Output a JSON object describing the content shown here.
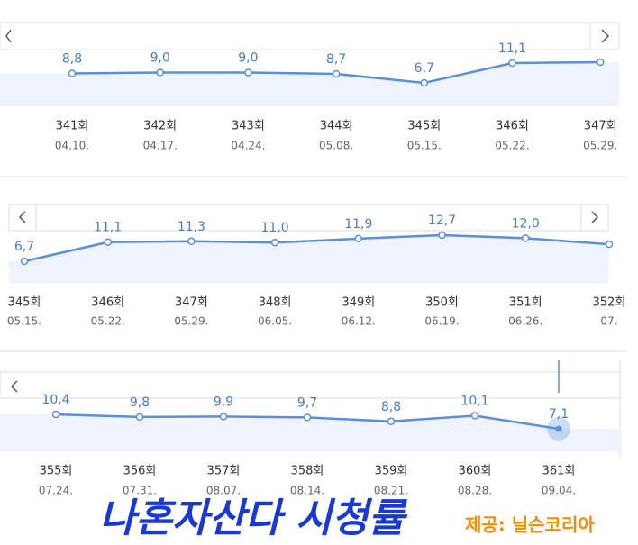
{
  "chart_data": [
    {
      "type": "line",
      "categories": [
        "341회",
        "342회",
        "343회",
        "344회",
        "345회",
        "346회",
        "347회"
      ],
      "dates": [
        "04.10.",
        "04.17.",
        "04.24.",
        "05.08.",
        "05.15.",
        "05.22.",
        "05.29."
      ],
      "values": [
        8.8,
        9.0,
        9.0,
        8.7,
        6.7,
        11.1,
        11.3
      ],
      "value_labels": [
        "8,8",
        "9,0",
        "9,0",
        "8,7",
        "6,7",
        "11,1",
        null
      ],
      "color": "#5b8fd9"
    },
    {
      "type": "line",
      "categories": [
        "345회",
        "346회",
        "347회",
        "348회",
        "349회",
        "350회",
        "351회",
        "352회"
      ],
      "dates": [
        "05.15.",
        "05.22.",
        "05.29.",
        "06.05.",
        "06.12.",
        "06.19.",
        "06.26.",
        "07."
      ],
      "values": [
        6.7,
        11.1,
        11.3,
        11.0,
        11.9,
        12.7,
        12.0,
        10.6
      ],
      "value_labels": [
        "6,7",
        "11,1",
        "11,3",
        "11,0",
        "11,9",
        "12,7",
        "12,0",
        null
      ],
      "color": "#5b8fd9"
    },
    {
      "type": "line",
      "categories": [
        "355회",
        "356회",
        "357회",
        "358회",
        "359회",
        "360회",
        "361회"
      ],
      "dates": [
        "07.24.",
        "07.31.",
        "08.07.",
        "08.14.",
        "08.21.",
        "08.28.",
        "09.04."
      ],
      "values": [
        10.4,
        9.8,
        9.9,
        9.7,
        8.8,
        10.1,
        7.1
      ],
      "value_labels": [
        "10,4",
        "9,8",
        "9,9",
        "9,7",
        "8,8",
        "10,1",
        "7,1"
      ],
      "color": "#5b8fd9"
    }
  ],
  "caption": {
    "title": "나혼자산다 시청률",
    "source": "제공: 닐슨코리아"
  }
}
